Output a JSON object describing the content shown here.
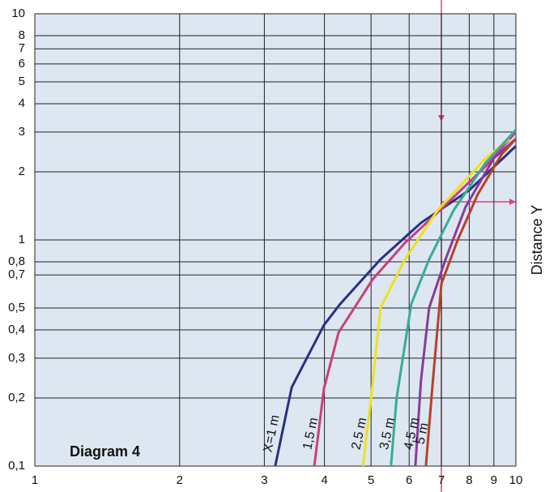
{
  "chart_data": {
    "type": "line",
    "title": "Diagram 4",
    "y_axis_label": "Distance Y",
    "xscale": "log",
    "yscale": "log",
    "grid": true,
    "xlim": [
      1,
      10
    ],
    "xticks": [
      1,
      2,
      3,
      4,
      5,
      6,
      7,
      8,
      9,
      10
    ],
    "ylim": [
      0.1,
      10
    ],
    "yticks": [
      {
        "value": 0.1,
        "label": "0,1"
      },
      {
        "value": 0.2,
        "label": "0,2"
      },
      {
        "value": 0.3,
        "label": "0,3"
      },
      {
        "value": 0.4,
        "label": "0,4"
      },
      {
        "value": 0.5,
        "label": "0,5"
      },
      {
        "value": 0.7,
        "label": "0,7"
      },
      {
        "value": 0.8,
        "label": "0,8"
      },
      1,
      2,
      3,
      4,
      5,
      6,
      7,
      8,
      10
    ],
    "series": [
      {
        "name": "X=1 m",
        "color": "#2a2f86",
        "x": [
          3.16,
          3.42,
          3.99,
          4.31,
          5.23,
          6.35,
          8.0,
          10
        ],
        "values": [
          0.1,
          0.223,
          0.42,
          0.52,
          0.82,
          1.19,
          1.66,
          2.6
        ]
      },
      {
        "name": "1,5 m",
        "color": "#c8407a",
        "x": [
          3.81,
          3.99,
          4.28,
          5.04,
          5.88,
          6.87,
          8.66,
          10
        ],
        "values": [
          0.1,
          0.22,
          0.39,
          0.67,
          0.97,
          1.32,
          2.12,
          3.0
        ]
      },
      {
        "name": "2,5 m",
        "color": "#f0e020",
        "x": [
          4.81,
          5.0,
          5.23,
          5.88,
          6.87,
          8.66,
          9.7
        ],
        "values": [
          0.1,
          0.2,
          0.5,
          0.82,
          1.35,
          2.3,
          2.8
        ]
      },
      {
        "name": "3,5 m",
        "color": "#3aaa9a",
        "x": [
          5.5,
          5.65,
          6.06,
          6.6,
          7.42,
          8.66,
          10
        ],
        "values": [
          0.1,
          0.2,
          0.52,
          0.82,
          1.35,
          2.2,
          3.07
        ]
      },
      {
        "name": "4,5 m",
        "color": "#8a3a9a",
        "x": [
          6.18,
          6.35,
          6.6,
          7.14,
          7.86,
          9.0,
          10
        ],
        "values": [
          0.1,
          0.24,
          0.5,
          0.82,
          1.4,
          2.3,
          2.8
        ]
      },
      {
        "name": "5 m",
        "color": "#b8402a",
        "x": [
          6.5,
          6.7,
          7.0,
          7.57,
          8.33,
          9.35,
          10
        ],
        "values": [
          0.1,
          0.22,
          0.64,
          1.0,
          1.59,
          2.4,
          2.8
        ]
      }
    ]
  }
}
